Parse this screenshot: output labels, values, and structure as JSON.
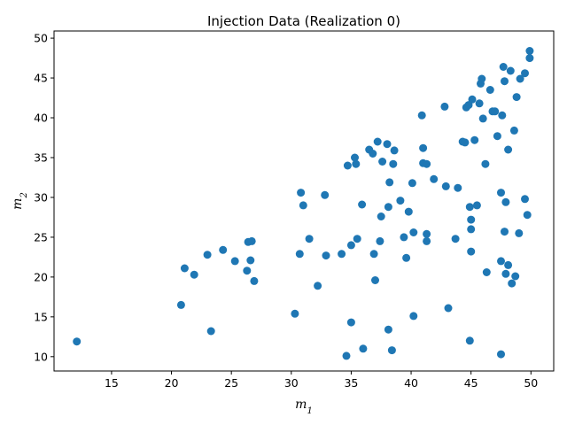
{
  "chart_data": {
    "type": "scatter",
    "title": "Injection Data (Realization 0)",
    "xlabel": "m",
    "xlabel_sub": "1",
    "ylabel": "m",
    "ylabel_sub": "2",
    "xlim": [
      10.2,
      51.9
    ],
    "ylim": [
      8.2,
      50.9
    ],
    "xticks": [
      15,
      20,
      25,
      30,
      35,
      40,
      45,
      50
    ],
    "yticks": [
      10,
      15,
      20,
      25,
      30,
      35,
      40,
      45,
      50
    ],
    "grid": false,
    "marker_color": "#1f77b4",
    "series": [
      {
        "points": [
          [
            12.1,
            11.9
          ],
          [
            20.8,
            16.5
          ],
          [
            21.1,
            21.1
          ],
          [
            21.9,
            20.3
          ],
          [
            23.0,
            22.8
          ],
          [
            23.3,
            13.2
          ],
          [
            24.3,
            23.4
          ],
          [
            25.3,
            22.0
          ],
          [
            26.3,
            20.8
          ],
          [
            26.4,
            24.4
          ],
          [
            26.6,
            22.1
          ],
          [
            26.7,
            24.5
          ],
          [
            26.9,
            19.5
          ],
          [
            30.3,
            15.4
          ],
          [
            30.7,
            22.9
          ],
          [
            30.8,
            30.6
          ],
          [
            31.0,
            29.0
          ],
          [
            31.5,
            24.8
          ],
          [
            32.2,
            18.9
          ],
          [
            32.8,
            30.3
          ],
          [
            32.9,
            22.7
          ],
          [
            34.2,
            22.9
          ],
          [
            34.6,
            10.1
          ],
          [
            34.7,
            34.0
          ],
          [
            35.0,
            14.3
          ],
          [
            35.0,
            24.0
          ],
          [
            35.3,
            35.0
          ],
          [
            35.4,
            34.2
          ],
          [
            35.5,
            24.8
          ],
          [
            35.9,
            29.1
          ],
          [
            36.0,
            11.0
          ],
          [
            36.5,
            36.0
          ],
          [
            36.8,
            35.5
          ],
          [
            36.9,
            22.9
          ],
          [
            37.0,
            19.6
          ],
          [
            37.2,
            37.0
          ],
          [
            37.4,
            24.5
          ],
          [
            37.5,
            27.6
          ],
          [
            37.6,
            34.5
          ],
          [
            38.0,
            36.7
          ],
          [
            38.1,
            28.8
          ],
          [
            38.1,
            13.4
          ],
          [
            38.2,
            31.9
          ],
          [
            38.4,
            10.8
          ],
          [
            38.5,
            34.2
          ],
          [
            38.6,
            35.9
          ],
          [
            39.1,
            29.6
          ],
          [
            39.4,
            25.0
          ],
          [
            39.6,
            22.4
          ],
          [
            39.8,
            28.2
          ],
          [
            40.1,
            31.8
          ],
          [
            40.2,
            15.1
          ],
          [
            40.2,
            25.6
          ],
          [
            40.9,
            40.3
          ],
          [
            41.0,
            36.2
          ],
          [
            41.0,
            34.3
          ],
          [
            41.3,
            34.2
          ],
          [
            41.3,
            25.4
          ],
          [
            41.3,
            24.5
          ],
          [
            41.9,
            32.3
          ],
          [
            42.8,
            41.4
          ],
          [
            42.9,
            31.4
          ],
          [
            43.1,
            16.1
          ],
          [
            43.7,
            24.8
          ],
          [
            43.9,
            31.2
          ],
          [
            44.3,
            37.0
          ],
          [
            44.5,
            36.9
          ],
          [
            44.6,
            41.3
          ],
          [
            44.8,
            41.6
          ],
          [
            44.9,
            12.0
          ],
          [
            44.9,
            28.8
          ],
          [
            45.0,
            23.2
          ],
          [
            45.0,
            27.2
          ],
          [
            45.0,
            26.0
          ],
          [
            45.1,
            42.3
          ],
          [
            45.3,
            37.2
          ],
          [
            45.5,
            29.0
          ],
          [
            45.7,
            41.8
          ],
          [
            45.8,
            44.3
          ],
          [
            45.9,
            44.9
          ],
          [
            46.0,
            39.9
          ],
          [
            46.2,
            34.2
          ],
          [
            46.3,
            20.6
          ],
          [
            46.6,
            43.5
          ],
          [
            46.8,
            40.8
          ],
          [
            47.0,
            40.8
          ],
          [
            47.2,
            37.7
          ],
          [
            47.5,
            30.6
          ],
          [
            47.5,
            22.0
          ],
          [
            47.5,
            10.3
          ],
          [
            47.6,
            40.3
          ],
          [
            47.7,
            46.4
          ],
          [
            47.8,
            25.7
          ],
          [
            47.8,
            44.6
          ],
          [
            47.9,
            29.4
          ],
          [
            47.9,
            20.4
          ],
          [
            48.1,
            21.5
          ],
          [
            48.1,
            36.0
          ],
          [
            48.3,
            45.9
          ],
          [
            48.4,
            19.2
          ],
          [
            48.6,
            38.4
          ],
          [
            48.7,
            20.1
          ],
          [
            48.8,
            42.6
          ],
          [
            49.0,
            25.5
          ],
          [
            49.1,
            44.9
          ],
          [
            49.5,
            45.6
          ],
          [
            49.5,
            29.8
          ],
          [
            49.7,
            27.8
          ],
          [
            49.9,
            47.5
          ],
          [
            49.9,
            48.4
          ]
        ]
      }
    ]
  }
}
